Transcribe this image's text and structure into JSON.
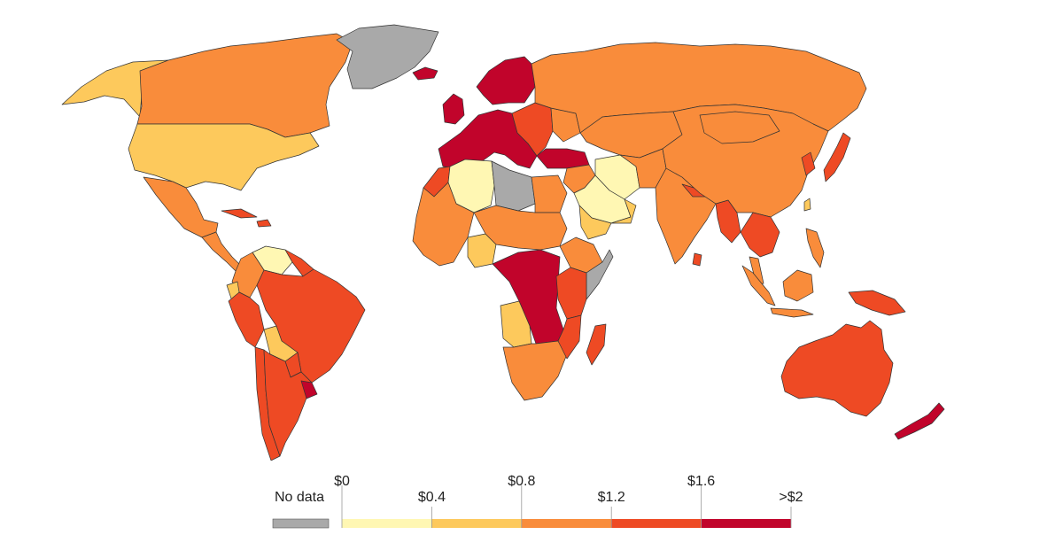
{
  "legend": {
    "no_data_label": "No data",
    "no_data_color": "#a9a9a9",
    "tick_labels": [
      "$0",
      "$0.4",
      "$0.8",
      "$1.2",
      "$1.6",
      ">$2"
    ],
    "bins": [
      {
        "color": "#fff7b3"
      },
      {
        "color": "#fdc95c"
      },
      {
        "color": "#f98c3b"
      },
      {
        "color": "#ee4a24"
      },
      {
        "color": "#c1042b"
      }
    ]
  },
  "regions": [
    {
      "id": "alaska",
      "name": "Alaska",
      "bin": 1
    },
    {
      "id": "canada",
      "name": "Canada",
      "bin": 2
    },
    {
      "id": "greenland",
      "name": "Greenland",
      "bin": "nodata"
    },
    {
      "id": "iceland",
      "name": "Iceland",
      "bin": 4
    },
    {
      "id": "usa",
      "name": "United States",
      "bin": 1
    },
    {
      "id": "mexico",
      "name": "Mexico",
      "bin": 2
    },
    {
      "id": "central-america",
      "name": "Central America",
      "bin": 2
    },
    {
      "id": "cuba",
      "name": "Cuba",
      "bin": 3
    },
    {
      "id": "hispaniola",
      "name": "Hispaniola",
      "bin": 3
    },
    {
      "id": "venezuela",
      "name": "Venezuela",
      "bin": 0
    },
    {
      "id": "colombia",
      "name": "Colombia",
      "bin": 2
    },
    {
      "id": "guianas",
      "name": "Guianas",
      "bin": 3
    },
    {
      "id": "ecuador",
      "name": "Ecuador",
      "bin": 1
    },
    {
      "id": "peru",
      "name": "Peru",
      "bin": 3
    },
    {
      "id": "brazil",
      "name": "Brazil",
      "bin": 3
    },
    {
      "id": "bolivia",
      "name": "Bolivia",
      "bin": 1
    },
    {
      "id": "paraguay",
      "name": "Paraguay",
      "bin": 3
    },
    {
      "id": "chile",
      "name": "Chile",
      "bin": 3
    },
    {
      "id": "argentina",
      "name": "Argentina",
      "bin": 3
    },
    {
      "id": "uruguay",
      "name": "Uruguay",
      "bin": 4
    },
    {
      "id": "western-europe",
      "name": "Western Europe",
      "bin": 4
    },
    {
      "id": "uk",
      "name": "United Kingdom",
      "bin": 4
    },
    {
      "id": "scandinavia",
      "name": "Scandinavia",
      "bin": 4
    },
    {
      "id": "eastern-europe",
      "name": "Eastern Europe",
      "bin": 3
    },
    {
      "id": "ukraine",
      "name": "Ukraine",
      "bin": 2
    },
    {
      "id": "turkey",
      "name": "Turkey",
      "bin": 4
    },
    {
      "id": "russia",
      "name": "Russia",
      "bin": 2
    },
    {
      "id": "central-asia",
      "name": "Central Asia",
      "bin": 2
    },
    {
      "id": "middle-east",
      "name": "Middle East",
      "bin": 2
    },
    {
      "id": "iran",
      "name": "Iran",
      "bin": 0
    },
    {
      "id": "saudi-arabia",
      "name": "Saudi Arabia",
      "bin": 0
    },
    {
      "id": "yemen",
      "name": "Yemen",
      "bin": 1
    },
    {
      "id": "oman",
      "name": "Oman",
      "bin": 1
    },
    {
      "id": "afghanistan-pakistan",
      "name": "Afghanistan / Pakistan",
      "bin": 2
    },
    {
      "id": "india",
      "name": "India",
      "bin": 2
    },
    {
      "id": "nepal",
      "name": "Nepal",
      "bin": 3
    },
    {
      "id": "bangladesh-myanmar",
      "name": "Bangladesh / Myanmar",
      "bin": 3
    },
    {
      "id": "sri-lanka",
      "name": "Sri Lanka",
      "bin": 3
    },
    {
      "id": "china",
      "name": "China",
      "bin": 2
    },
    {
      "id": "mongolia",
      "name": "Mongolia",
      "bin": 2
    },
    {
      "id": "korea",
      "name": "Korea",
      "bin": 3
    },
    {
      "id": "japan",
      "name": "Japan",
      "bin": 3
    },
    {
      "id": "taiwan",
      "name": "Taiwan",
      "bin": 1
    },
    {
      "id": "southeast-asia",
      "name": "Southeast Asia",
      "bin": 3
    },
    {
      "id": "malay-peninsula",
      "name": "Malay Peninsula",
      "bin": 2
    },
    {
      "id": "sumatra",
      "name": "Sumatra",
      "bin": 2
    },
    {
      "id": "borneo",
      "name": "Borneo",
      "bin": 2
    },
    {
      "id": "philippines",
      "name": "Philippines",
      "bin": 2
    },
    {
      "id": "java",
      "name": "Java",
      "bin": 2
    },
    {
      "id": "new-guinea",
      "name": "New Guinea",
      "bin": 3
    },
    {
      "id": "australia",
      "name": "Australia",
      "bin": 3
    },
    {
      "id": "new-zealand",
      "name": "New Zealand",
      "bin": 4
    },
    {
      "id": "morocco",
      "name": "Morocco",
      "bin": 3
    },
    {
      "id": "algeria",
      "name": "Algeria",
      "bin": 0
    },
    {
      "id": "libya",
      "name": "Libya",
      "bin": "nodata"
    },
    {
      "id": "egypt",
      "name": "Egypt",
      "bin": 2
    },
    {
      "id": "west-africa",
      "name": "West Africa",
      "bin": 2
    },
    {
      "id": "nigeria",
      "name": "Nigeria",
      "bin": 1
    },
    {
      "id": "chad-sudan",
      "name": "Chad / Sudan",
      "bin": 2
    },
    {
      "id": "ethiopia",
      "name": "Ethiopia",
      "bin": 2
    },
    {
      "id": "somalia",
      "name": "Somalia",
      "bin": "nodata"
    },
    {
      "id": "central-africa",
      "name": "Central Africa",
      "bin": 4
    },
    {
      "id": "east-africa",
      "name": "East Africa",
      "bin": 3
    },
    {
      "id": "angola",
      "name": "Angola",
      "bin": 1
    },
    {
      "id": "southern-africa",
      "name": "Southern Africa",
      "bin": 2
    },
    {
      "id": "mozambique",
      "name": "Mozambique",
      "bin": 3
    },
    {
      "id": "madagascar",
      "name": "Madagascar",
      "bin": 3
    }
  ]
}
